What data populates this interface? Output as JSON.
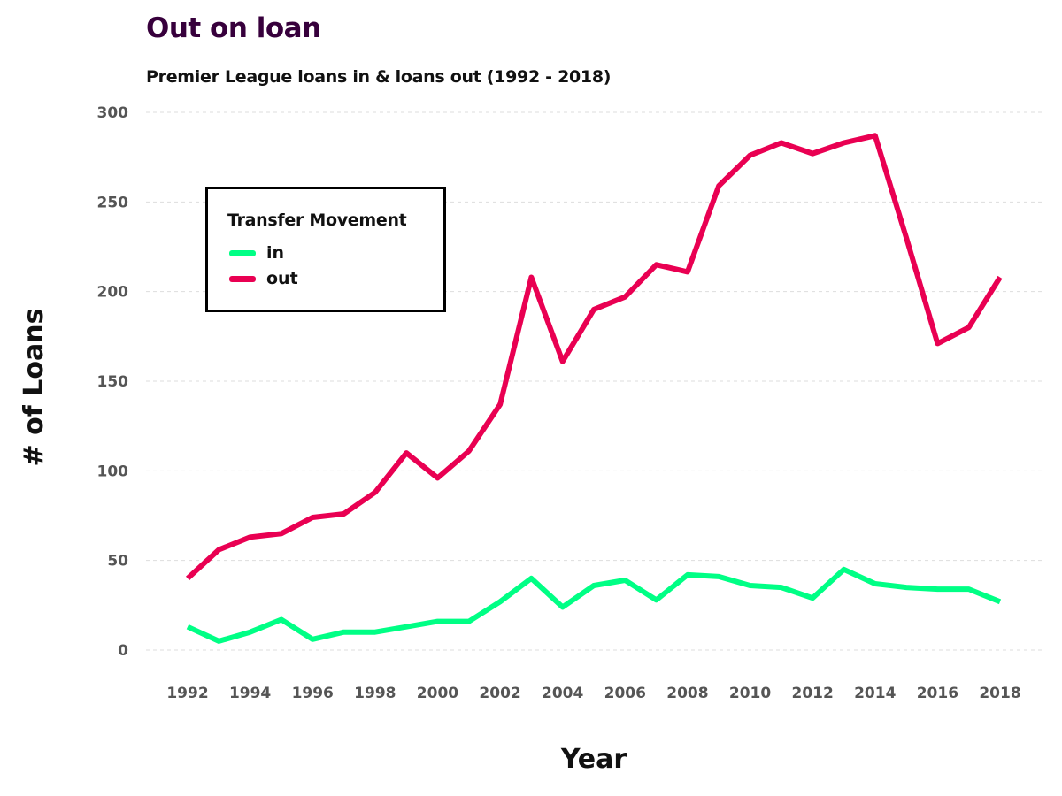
{
  "title": "Out on loan",
  "subtitle": "Premier League loans in & loans out (1992 - 2018)",
  "chart_data": {
    "type": "line",
    "title": "Out on loan",
    "subtitle": "Premier League loans in & loans out (1992 - 2018)",
    "xlabel": "Year",
    "ylabel": "# of Loans",
    "x": [
      1992,
      1993,
      1994,
      1995,
      1996,
      1997,
      1998,
      1999,
      2000,
      2001,
      2002,
      2003,
      2004,
      2005,
      2006,
      2007,
      2008,
      2009,
      2010,
      2011,
      2012,
      2013,
      2014,
      2015,
      2016,
      2017,
      2018
    ],
    "xticks": [
      "1992",
      "1994",
      "1996",
      "1998",
      "2000",
      "2002",
      "2004",
      "2006",
      "2008",
      "2010",
      "2012",
      "2014",
      "2016",
      "2018"
    ],
    "yticks": [
      "0",
      "50",
      "100",
      "150",
      "200",
      "250",
      "300"
    ],
    "xlim": [
      1992,
      2018
    ],
    "ylim": [
      0,
      300
    ],
    "grid": "horizontal dashed",
    "legend_title": "Transfer Movement",
    "legend_placement": "top-left",
    "series": [
      {
        "name": "in",
        "color": "#00ff85",
        "values": [
          13,
          5,
          10,
          17,
          6,
          10,
          10,
          13,
          16,
          16,
          27,
          40,
          24,
          36,
          39,
          28,
          42,
          41,
          36,
          35,
          29,
          45,
          37,
          35,
          34,
          34,
          27
        ]
      },
      {
        "name": "out",
        "color": "#e90052",
        "values": [
          40,
          56,
          63,
          65,
          74,
          76,
          88,
          110,
          96,
          111,
          137,
          208,
          161,
          190,
          197,
          215,
          211,
          259,
          276,
          283,
          277,
          283,
          287,
          230,
          171,
          180,
          208
        ]
      }
    ]
  }
}
